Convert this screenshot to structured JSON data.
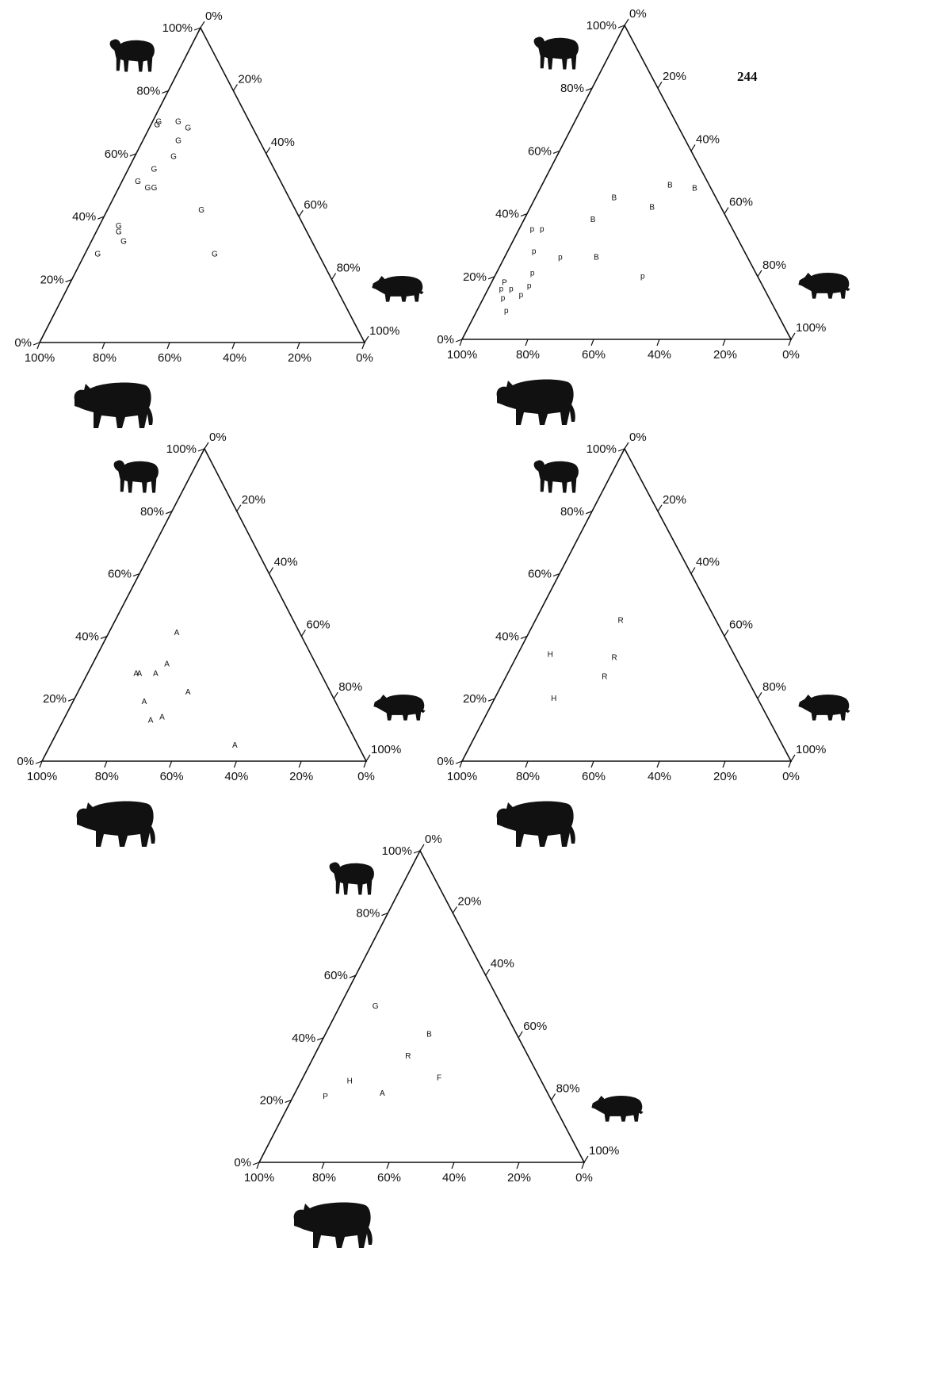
{
  "page_number": "244",
  "chart_data": [
    {
      "type": "ternary",
      "labels": [
        "G",
        "G",
        "G",
        "G",
        "G",
        "G",
        "G",
        "G",
        "G",
        "G",
        "G",
        "G",
        "G",
        "G",
        "G",
        "G"
      ],
      "sheep": [
        70,
        69,
        70,
        68,
        64,
        59,
        55,
        51,
        49,
        49,
        42,
        37,
        35,
        32,
        28,
        28
      ],
      "pig": [
        2,
        2,
        8,
        12,
        11,
        12,
        8,
        5,
        9,
        11,
        29,
        6,
        7,
        10,
        4,
        40
      ],
      "cattle": [
        28,
        29,
        22,
        20,
        25,
        29,
        37,
        44,
        42,
        40,
        29,
        57,
        58,
        58,
        68,
        32
      ],
      "sheep_ticks": [
        {
          "value": 0,
          "label": "0%"
        },
        {
          "value": 20,
          "label": "20%"
        },
        {
          "value": 40,
          "label": "40%"
        },
        {
          "value": 60,
          "label": "60%"
        },
        {
          "value": 80,
          "label": "80%"
        },
        {
          "value": 100,
          "label": "100%"
        }
      ],
      "pig_ticks": [
        {
          "value": 0,
          "label": "0%"
        },
        {
          "value": 20,
          "label": "20%"
        },
        {
          "value": 40,
          "label": "40%"
        },
        {
          "value": 60,
          "label": "60%"
        },
        {
          "value": 80,
          "label": "80%"
        },
        {
          "value": 100,
          "label": "100%"
        }
      ],
      "cattle_ticks": [
        {
          "value": 100,
          "label": "100%"
        },
        {
          "value": 80,
          "label": "80%"
        },
        {
          "value": 60,
          "label": "60%"
        },
        {
          "value": 40,
          "label": "40%"
        },
        {
          "value": 20,
          "label": "20%"
        },
        {
          "value": 0,
          "label": "0%"
        }
      ]
    },
    {
      "type": "ternary",
      "labels": [
        "B",
        "B",
        "B",
        "B",
        "B",
        "B",
        "p",
        "p",
        "p",
        "p",
        "p",
        "p",
        "p",
        "P",
        "p",
        "p",
        "p",
        "p",
        "p"
      ],
      "sheep": [
        45,
        38,
        49,
        48,
        42,
        26,
        20,
        35,
        35,
        28,
        26,
        21,
        17,
        18,
        16,
        16,
        13,
        14,
        9
      ],
      "pig": [
        24,
        21,
        39,
        47,
        37,
        28,
        45,
        4,
        7,
        8,
        17,
        11,
        12,
        4,
        4,
        7,
        6,
        11,
        9
      ],
      "cattle": [
        31,
        41,
        12,
        5,
        21,
        46,
        35,
        61,
        58,
        64,
        57,
        68,
        71,
        78,
        80,
        77,
        81,
        75,
        82
      ],
      "sheep_ticks": [
        {
          "value": 0,
          "label": "0%"
        },
        {
          "value": 20,
          "label": "20%"
        },
        {
          "value": 40,
          "label": "40%"
        },
        {
          "value": 60,
          "label": "60%"
        },
        {
          "value": 80,
          "label": "80%"
        },
        {
          "value": 100,
          "label": "100%"
        }
      ],
      "pig_ticks": [
        {
          "value": 0,
          "label": "0%"
        },
        {
          "value": 20,
          "label": "20%"
        },
        {
          "value": 40,
          "label": "40%"
        },
        {
          "value": 60,
          "label": "60%"
        },
        {
          "value": 80,
          "label": "80%"
        },
        {
          "value": 100,
          "label": "100%"
        }
      ],
      "cattle_ticks": [
        {
          "value": 100,
          "label": "100%"
        },
        {
          "value": 80,
          "label": "80%"
        },
        {
          "value": 60,
          "label": "60%"
        },
        {
          "value": 40,
          "label": "40%"
        },
        {
          "value": 20,
          "label": "20%"
        },
        {
          "value": 0,
          "label": "0%"
        }
      ]
    },
    {
      "type": "ternary",
      "labels": [
        "A",
        "A",
        "A",
        "A",
        "A",
        "A",
        "A",
        "A",
        "A",
        "A"
      ],
      "sheep": [
        41,
        28,
        28,
        28,
        31,
        19,
        22,
        13,
        14,
        5
      ],
      "pig": [
        21,
        15,
        16,
        21,
        23,
        22,
        34,
        27,
        30,
        57
      ],
      "cattle": [
        38,
        57,
        56,
        51,
        46,
        59,
        44,
        60,
        56,
        38
      ],
      "sheep_ticks": [
        {
          "value": 0,
          "label": "0%"
        },
        {
          "value": 20,
          "label": "20%"
        },
        {
          "value": 40,
          "label": "40%"
        },
        {
          "value": 60,
          "label": "60%"
        },
        {
          "value": 80,
          "label": "80%"
        },
        {
          "value": 100,
          "label": "100%"
        }
      ],
      "pig_ticks": [
        {
          "value": 0,
          "label": "0%"
        },
        {
          "value": 20,
          "label": "20%"
        },
        {
          "value": 40,
          "label": "40%"
        },
        {
          "value": 60,
          "label": "60%"
        },
        {
          "value": 80,
          "label": "80%"
        },
        {
          "value": 100,
          "label": "100%"
        }
      ],
      "cattle_ticks": [
        {
          "value": 100,
          "label": "100%"
        },
        {
          "value": 80,
          "label": "80%"
        },
        {
          "value": 60,
          "label": "60%"
        },
        {
          "value": 40,
          "label": "40%"
        },
        {
          "value": 20,
          "label": "20%"
        },
        {
          "value": 0,
          "label": "0%"
        }
      ]
    },
    {
      "type": "ternary",
      "labels": [
        "R",
        "R",
        "R",
        "H",
        "H"
      ],
      "sheep": [
        45,
        33,
        27,
        34,
        20
      ],
      "pig": [
        26,
        30,
        30,
        10,
        18
      ],
      "cattle": [
        29,
        37,
        43,
        56,
        62
      ],
      "sheep_ticks": [
        {
          "value": 0,
          "label": "0%"
        },
        {
          "value": 20,
          "label": "20%"
        },
        {
          "value": 40,
          "label": "40%"
        },
        {
          "value": 60,
          "label": "60%"
        },
        {
          "value": 80,
          "label": "80%"
        },
        {
          "value": 100,
          "label": "100%"
        }
      ],
      "pig_ticks": [
        {
          "value": 0,
          "label": "0%"
        },
        {
          "value": 20,
          "label": "20%"
        },
        {
          "value": 40,
          "label": "40%"
        },
        {
          "value": 60,
          "label": "60%"
        },
        {
          "value": 80,
          "label": "80%"
        },
        {
          "value": 100,
          "label": "100%"
        }
      ],
      "cattle_ticks": [
        {
          "value": 100,
          "label": "100%"
        },
        {
          "value": 80,
          "label": "80%"
        },
        {
          "value": 60,
          "label": "60%"
        },
        {
          "value": 40,
          "label": "40%"
        },
        {
          "value": 20,
          "label": "20%"
        },
        {
          "value": 0,
          "label": "0%"
        }
      ]
    },
    {
      "type": "ternary",
      "labels": [
        "G",
        "B",
        "R",
        "F",
        "H",
        "A",
        "P"
      ],
      "sheep": [
        50,
        41,
        34,
        27,
        26,
        22,
        21
      ],
      "pig": [
        11,
        32,
        29,
        42,
        15,
        27,
        10
      ],
      "cattle": [
        39,
        27,
        37,
        31,
        59,
        51,
        69
      ],
      "sheep_ticks": [
        {
          "value": 0,
          "label": "0%"
        },
        {
          "value": 20,
          "label": "20%"
        },
        {
          "value": 40,
          "label": "40%"
        },
        {
          "value": 60,
          "label": "60%"
        },
        {
          "value": 80,
          "label": "80%"
        },
        {
          "value": 100,
          "label": "100%"
        }
      ],
      "pig_ticks": [
        {
          "value": 0,
          "label": "0%"
        },
        {
          "value": 20,
          "label": "20%"
        },
        {
          "value": 40,
          "label": "40%"
        },
        {
          "value": 60,
          "label": "60%"
        },
        {
          "value": 80,
          "label": "80%"
        },
        {
          "value": 100,
          "label": "100%"
        }
      ],
      "cattle_ticks": [
        {
          "value": 100,
          "label": "100%"
        },
        {
          "value": 80,
          "label": "80%"
        },
        {
          "value": 60,
          "label": "60%"
        },
        {
          "value": 40,
          "label": "40%"
        },
        {
          "value": 20,
          "label": "20%"
        },
        {
          "value": 0,
          "label": "0%"
        }
      ]
    }
  ]
}
